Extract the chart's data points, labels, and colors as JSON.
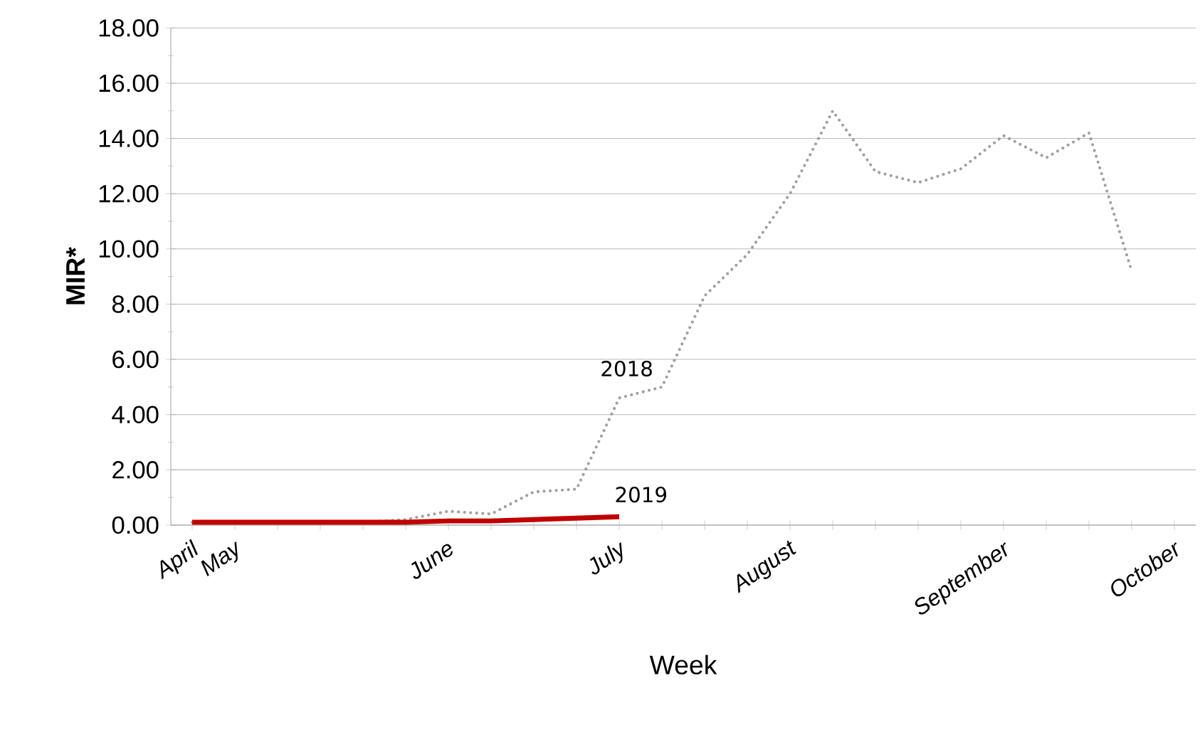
{
  "chart_data": {
    "type": "line",
    "xlabel": "Week",
    "ylabel": "MIR*",
    "categories": [
      "April",
      "May",
      null,
      null,
      null,
      null,
      "June",
      null,
      null,
      null,
      "July",
      null,
      null,
      null,
      "August",
      null,
      null,
      null,
      null,
      "September",
      null,
      null,
      null,
      "October"
    ],
    "series": [
      {
        "name": "2018",
        "color": "#a0a0a0",
        "line_style": "dotted",
        "values": [
          0.1,
          0.1,
          0.1,
          0.1,
          0.1,
          0.2,
          0.5,
          0.4,
          1.2,
          1.3,
          4.6,
          5.0,
          8.3,
          9.8,
          12.0,
          15.0,
          12.8,
          12.4,
          12.9,
          14.1,
          13.3,
          14.2,
          9.2,
          null
        ]
      },
      {
        "name": "2019",
        "color": "#c00000",
        "line_style": "solid",
        "values": [
          0.1,
          0.1,
          0.1,
          0.1,
          0.1,
          0.1,
          0.15,
          0.15,
          0.2,
          0.25,
          0.3,
          null,
          null,
          null,
          null,
          null,
          null,
          null,
          null,
          null,
          null,
          null,
          null,
          null
        ]
      }
    ],
    "ylim": [
      0,
      18
    ],
    "yticks": [
      {
        "value": 0,
        "label": "0.00"
      },
      {
        "value": 2,
        "label": "2.00"
      },
      {
        "value": 4,
        "label": "4.00"
      },
      {
        "value": 6,
        "label": "6.00"
      },
      {
        "value": 8,
        "label": "8.00"
      },
      {
        "value": 10,
        "label": "10.00"
      },
      {
        "value": 12,
        "label": "12.00"
      },
      {
        "value": 14,
        "label": "14.00"
      },
      {
        "value": 16,
        "label": "16.00"
      },
      {
        "value": 18,
        "label": "18.00"
      }
    ],
    "grid": "y",
    "legend": false
  }
}
